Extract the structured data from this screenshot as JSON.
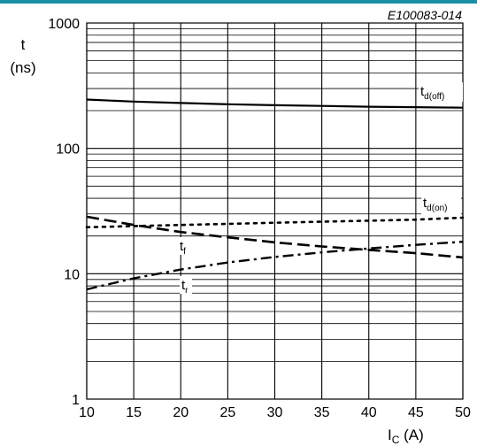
{
  "chart_data": {
    "type": "line",
    "reference": "E100083-014",
    "ylabel_symbol": "t",
    "ylabel_unit": "(ns)",
    "xlabel_main": "I",
    "xlabel_sub": "C",
    "xlabel_unit": "(A)",
    "xscale": "linear",
    "yscale": "log",
    "xlim": [
      10,
      50
    ],
    "ylim": [
      1,
      1000
    ],
    "grid": true,
    "x_ticks": [
      10,
      15,
      20,
      25,
      30,
      35,
      40,
      45,
      50
    ],
    "x_tick_labels": [
      "10",
      "15",
      "20",
      "25",
      "30",
      "35",
      "40",
      "45",
      "50"
    ],
    "y_ticks": [
      1,
      10,
      100,
      1000
    ],
    "y_tick_labels": [
      "1",
      "10",
      "100",
      "1000"
    ],
    "series": [
      {
        "name_main": "t",
        "name_sub": "d(off)",
        "style": "solid",
        "x": [
          10,
          15,
          20,
          25,
          30,
          35,
          40,
          45,
          50
        ],
        "y": [
          245,
          236,
          230,
          225,
          221,
          218,
          215,
          213,
          211
        ]
      },
      {
        "name_main": "t",
        "name_sub": "d(on)",
        "style": "dotted",
        "x": [
          10,
          15,
          20,
          25,
          30,
          35,
          40,
          45,
          50
        ],
        "y": [
          23.5,
          24.0,
          24.5,
          25.0,
          25.5,
          26.0,
          26.5,
          27.0,
          28.0
        ]
      },
      {
        "name_main": "t",
        "name_sub": "f",
        "style": "dashed",
        "x": [
          10,
          15,
          20,
          25,
          30,
          35,
          40,
          45,
          50
        ],
        "y": [
          28.5,
          24.5,
          21.5,
          19.5,
          17.8,
          16.5,
          15.5,
          14.6,
          13.5
        ]
      },
      {
        "name_main": "t",
        "name_sub": "r",
        "style": "dashdot",
        "x": [
          10,
          15,
          20,
          25,
          30,
          35,
          40,
          45,
          50
        ],
        "y": [
          7.5,
          9.2,
          10.8,
          12.3,
          13.6,
          14.8,
          15.9,
          17.0,
          18.0
        ]
      }
    ],
    "colors": {
      "line": "#000000",
      "grid": "#000000",
      "accent_bar": "#1a8fa6"
    }
  }
}
